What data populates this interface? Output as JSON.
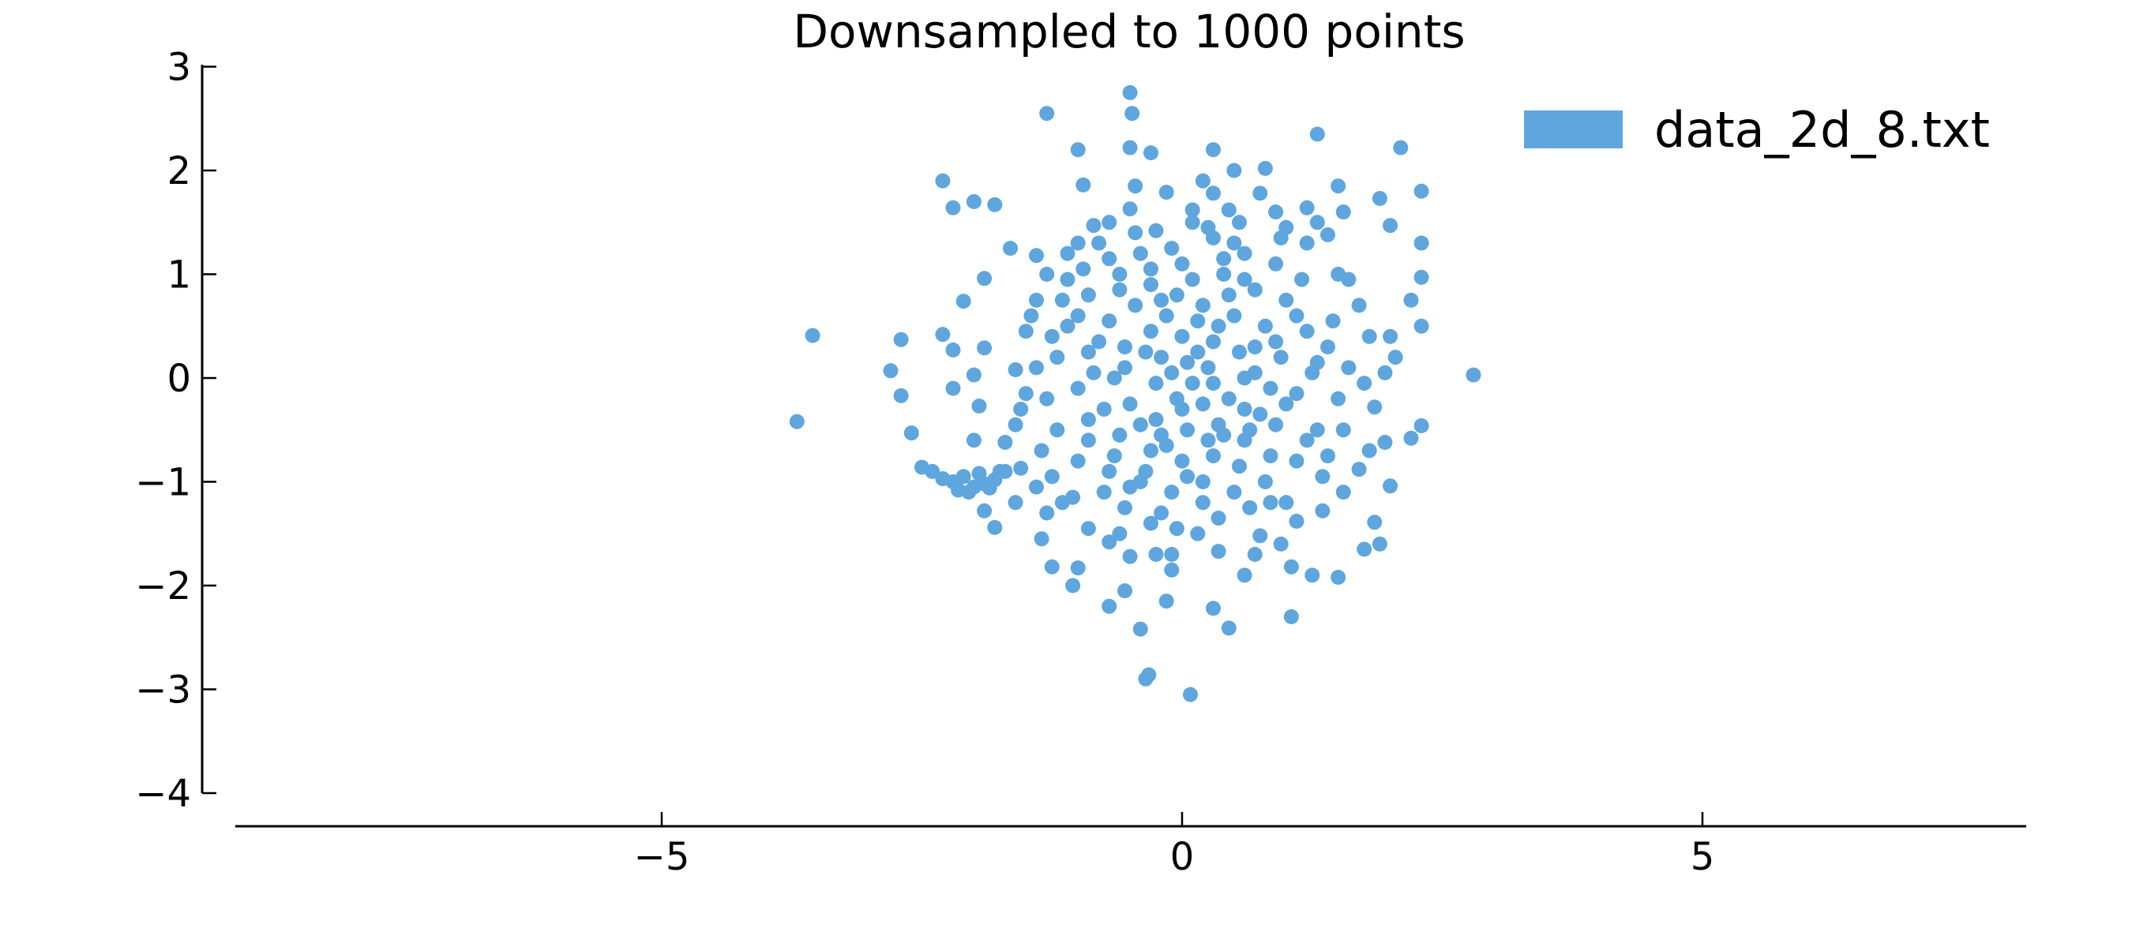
{
  "chart_data": {
    "type": "scatter",
    "title": "Downsampled to 1000 points",
    "xlabel": "",
    "ylabel": "",
    "xlim": [
      -9.1,
      8.1
    ],
    "ylim": [
      -4.3,
      3.0
    ],
    "x_ticks": [
      -5,
      0,
      5
    ],
    "x_tick_labels": [
      "−5",
      "0",
      "5"
    ],
    "y_ticks": [
      3,
      2,
      1,
      0,
      -1,
      -2,
      -3,
      -4
    ],
    "y_tick_labels": [
      "3",
      "2",
      "1",
      "0",
      "−1",
      "−2",
      "−3",
      "−4"
    ],
    "grid": false,
    "legend_position": "top-right",
    "series": [
      {
        "name": "data_2d_8.txt",
        "color": "#5fa6df",
        "points": [
          [
            -3.7,
            -0.42
          ],
          [
            -3.55,
            0.41
          ],
          [
            -2.8,
            0.07
          ],
          [
            -2.7,
            -0.17
          ],
          [
            -2.7,
            0.37
          ],
          [
            -2.6,
            -0.53
          ],
          [
            -2.3,
            1.9
          ],
          [
            -2.2,
            1.64
          ],
          [
            -2.0,
            1.7
          ],
          [
            -1.8,
            1.67
          ],
          [
            -1.3,
            2.55
          ],
          [
            -1.0,
            2.2
          ],
          [
            -0.5,
            2.75
          ],
          [
            -0.48,
            2.55
          ],
          [
            -0.5,
            2.22
          ],
          [
            -0.3,
            2.17
          ],
          [
            0.3,
            2.2
          ],
          [
            1.3,
            2.35
          ],
          [
            2.1,
            2.22
          ],
          [
            0.8,
            2.02
          ],
          [
            0.5,
            2.0
          ],
          [
            -2.3,
            0.42
          ],
          [
            -2.2,
            0.27
          ],
          [
            -2.1,
            0.74
          ],
          [
            -1.9,
            0.96
          ],
          [
            -1.9,
            0.29
          ],
          [
            -2.0,
            0.03
          ],
          [
            -2.2,
            -0.1
          ],
          [
            -1.95,
            -0.27
          ],
          [
            -2.5,
            -0.86
          ],
          [
            -2.4,
            -0.9
          ],
          [
            -2.3,
            -0.97
          ],
          [
            -2.2,
            -1.0
          ],
          [
            -2.1,
            -0.95
          ],
          [
            -2.0,
            -1.05
          ],
          [
            -1.9,
            -1.02
          ],
          [
            -1.8,
            -0.98
          ],
          [
            -2.15,
            -1.08
          ],
          [
            -2.05,
            -1.1
          ],
          [
            -1.95,
            -0.92
          ],
          [
            -1.85,
            -1.06
          ],
          [
            -1.75,
            -0.9
          ],
          [
            -1.9,
            -1.28
          ],
          [
            -1.8,
            -1.44
          ],
          [
            -1.6,
            -1.2
          ],
          [
            -1.35,
            -1.55
          ],
          [
            -1.25,
            -1.82
          ],
          [
            -1.0,
            -1.83
          ],
          [
            -1.05,
            -2.0
          ],
          [
            -0.7,
            -2.2
          ],
          [
            -0.55,
            -2.05
          ],
          [
            -0.4,
            -2.42
          ],
          [
            -0.35,
            -2.9
          ],
          [
            -0.32,
            -2.86
          ],
          [
            0.08,
            -3.05
          ],
          [
            0.3,
            -2.22
          ],
          [
            0.45,
            -2.41
          ],
          [
            -0.15,
            -2.15
          ],
          [
            1.05,
            -2.3
          ],
          [
            1.05,
            -1.82
          ],
          [
            1.5,
            -1.92
          ],
          [
            1.25,
            -1.9
          ],
          [
            1.75,
            -1.65
          ],
          [
            1.9,
            -1.6
          ],
          [
            1.85,
            -1.39
          ],
          [
            2.0,
            -1.04
          ],
          [
            2.2,
            -0.58
          ],
          [
            2.3,
            -0.46
          ],
          [
            2.8,
            0.03
          ],
          [
            2.3,
            0.5
          ],
          [
            2.3,
            0.97
          ],
          [
            2.3,
            1.3
          ],
          [
            2.3,
            1.8
          ],
          [
            2.0,
            1.47
          ],
          [
            1.9,
            1.73
          ],
          [
            1.5,
            1.85
          ],
          [
            1.55,
            1.6
          ],
          [
            1.4,
            1.38
          ],
          [
            1.2,
            1.64
          ],
          [
            1.0,
            1.45
          ],
          [
            0.75,
            1.78
          ],
          [
            0.55,
            1.5
          ],
          [
            0.45,
            1.62
          ],
          [
            0.3,
            1.78
          ],
          [
            0.1,
            1.62
          ],
          [
            -0.15,
            1.79
          ],
          [
            -0.45,
            1.85
          ],
          [
            -0.5,
            1.63
          ],
          [
            -0.95,
            1.86
          ],
          [
            -1.4,
            1.18
          ],
          [
            -1.65,
            1.25
          ],
          [
            -0.7,
            1.5
          ],
          [
            -0.85,
            1.47
          ],
          [
            -0.25,
            1.42
          ],
          [
            2.05,
            0.2
          ],
          [
            2.2,
            0.75
          ],
          [
            1.95,
            0.05
          ],
          [
            1.85,
            -0.28
          ],
          [
            1.95,
            -0.62
          ],
          [
            1.7,
            -0.88
          ],
          [
            1.55,
            -1.1
          ],
          [
            1.35,
            -1.28
          ],
          [
            1.1,
            -1.38
          ],
          [
            0.95,
            -1.6
          ],
          [
            0.75,
            -1.52
          ],
          [
            0.6,
            -1.9
          ],
          [
            0.35,
            -1.67
          ],
          [
            0.15,
            -1.5
          ],
          [
            -0.05,
            -1.45
          ],
          [
            -0.1,
            -1.85
          ],
          [
            -0.25,
            -1.7
          ],
          [
            -0.5,
            -1.72
          ],
          [
            -0.7,
            -1.58
          ],
          [
            -0.9,
            -1.45
          ],
          [
            -1.15,
            -1.2
          ],
          [
            -1.4,
            -1.05
          ],
          [
            -1.55,
            -0.87
          ],
          [
            -1.7,
            -0.62
          ],
          [
            -1.55,
            -0.3
          ],
          [
            -1.6,
            0.08
          ],
          [
            -1.5,
            0.45
          ],
          [
            -1.4,
            0.75
          ],
          [
            -1.3,
            1.0
          ],
          [
            -1.0,
            1.3
          ],
          [
            -0.7,
            1.15
          ],
          [
            -0.4,
            1.2
          ],
          [
            0.0,
            1.1
          ],
          [
            0.3,
            1.35
          ],
          [
            0.6,
            1.2
          ],
          [
            0.9,
            1.1
          ],
          [
            1.2,
            1.3
          ],
          [
            1.5,
            1.0
          ],
          [
            1.7,
            0.7
          ],
          [
            1.8,
            0.4
          ],
          [
            1.6,
            0.1
          ],
          [
            1.5,
            -0.2
          ],
          [
            1.3,
            -0.5
          ],
          [
            1.1,
            -0.8
          ],
          [
            0.8,
            -1.0
          ],
          [
            0.5,
            -1.1
          ],
          [
            0.2,
            -1.2
          ],
          [
            -0.1,
            -1.1
          ],
          [
            -0.4,
            -1.0
          ],
          [
            -0.7,
            -0.9
          ],
          [
            -1.0,
            -0.8
          ],
          [
            -1.2,
            -0.5
          ],
          [
            -1.3,
            -0.2
          ],
          [
            -1.2,
            0.2
          ],
          [
            -1.1,
            0.5
          ],
          [
            -0.9,
            0.8
          ],
          [
            -0.6,
            1.0
          ],
          [
            -0.3,
            0.9
          ],
          [
            0.1,
            0.95
          ],
          [
            0.4,
            1.0
          ],
          [
            0.7,
            0.85
          ],
          [
            1.0,
            0.75
          ],
          [
            1.2,
            0.45
          ],
          [
            1.3,
            0.15
          ],
          [
            1.1,
            -0.15
          ],
          [
            0.9,
            -0.45
          ],
          [
            0.6,
            -0.6
          ],
          [
            0.3,
            -0.75
          ],
          [
            0.0,
            -0.8
          ],
          [
            -0.3,
            -0.7
          ],
          [
            -0.6,
            -0.55
          ],
          [
            -0.9,
            -0.4
          ],
          [
            -1.0,
            -0.1
          ],
          [
            -0.9,
            0.25
          ],
          [
            -0.7,
            0.55
          ],
          [
            -0.45,
            0.7
          ],
          [
            -0.15,
            0.6
          ],
          [
            0.2,
            0.7
          ],
          [
            0.5,
            0.6
          ],
          [
            0.8,
            0.5
          ],
          [
            0.95,
            0.2
          ],
          [
            0.85,
            -0.1
          ],
          [
            0.6,
            -0.3
          ],
          [
            0.35,
            -0.45
          ],
          [
            0.05,
            -0.5
          ],
          [
            -0.25,
            -0.4
          ],
          [
            -0.5,
            -0.25
          ],
          [
            -0.65,
            0.0
          ],
          [
            -0.55,
            0.3
          ],
          [
            -0.3,
            0.45
          ],
          [
            0.0,
            0.4
          ],
          [
            0.3,
            0.35
          ],
          [
            0.55,
            0.25
          ],
          [
            0.6,
            0.0
          ],
          [
            0.45,
            -0.2
          ],
          [
            0.2,
            -0.25
          ],
          [
            -0.05,
            -0.2
          ],
          [
            -0.25,
            -0.05
          ],
          [
            -0.2,
            0.2
          ],
          [
            0.05,
            0.15
          ],
          [
            0.25,
            0.1
          ],
          [
            0.3,
            -0.05
          ],
          [
            0.1,
            -0.05
          ],
          [
            -0.1,
            0.05
          ],
          [
            0.15,
            0.25
          ],
          [
            -0.35,
            0.25
          ],
          [
            -0.4,
            -0.45
          ],
          [
            0.4,
            -0.55
          ],
          [
            0.7,
            0.3
          ],
          [
            -0.8,
            0.35
          ],
          [
            -0.75,
            -0.3
          ],
          [
            0.75,
            -0.35
          ],
          [
            -1.1,
            0.95
          ],
          [
            1.15,
            0.95
          ],
          [
            1.4,
            -0.75
          ],
          [
            -1.35,
            -0.7
          ],
          [
            -1.25,
            0.4
          ],
          [
            1.45,
            0.55
          ],
          [
            -0.55,
            -1.25
          ],
          [
            0.65,
            -1.25
          ],
          [
            -0.2,
            -1.3
          ],
          [
            0.35,
            -1.35
          ],
          [
            -1.6,
            -0.45
          ],
          [
            1.75,
            -0.05
          ],
          [
            -0.45,
            1.4
          ],
          [
            0.25,
            1.45
          ],
          [
            -0.35,
            -0.9
          ],
          [
            0.45,
            0.8
          ],
          [
            -0.6,
            0.85
          ],
          [
            0.85,
            -0.75
          ],
          [
            1.25,
            0.05
          ],
          [
            -1.4,
            0.1
          ],
          [
            0.05,
            -0.95
          ],
          [
            -0.1,
            1.25
          ],
          [
            1.6,
            0.95
          ],
          [
            -1.5,
            -0.15
          ],
          [
            0.95,
            1.35
          ],
          [
            -1.05,
            -1.15
          ],
          [
            0.15,
            0.55
          ],
          [
            -0.15,
            -0.65
          ],
          [
            0.55,
            -0.85
          ],
          [
            -0.85,
            0.05
          ],
          [
            0.7,
            0.05
          ],
          [
            1.0,
            -0.25
          ],
          [
            -0.2,
            0.75
          ],
          [
            -0.65,
            -0.75
          ],
          [
            0.85,
            -1.2
          ],
          [
            -0.95,
            1.05
          ],
          [
            0.2,
            -1.0
          ],
          [
            1.35,
            -0.95
          ],
          [
            -1.25,
            -0.95
          ],
          [
            0.4,
            1.15
          ],
          [
            -0.5,
            -1.05
          ],
          [
            1.1,
            0.6
          ],
          [
            -1.15,
            0.75
          ],
          [
            0.6,
            0.95
          ],
          [
            -0.75,
            -1.1
          ],
          [
            0.25,
            -0.6
          ],
          [
            -0.3,
            1.05
          ],
          [
            1.55,
            -0.5
          ],
          [
            -1.45,
            0.6
          ],
          [
            0.9,
            0.35
          ],
          [
            -0.55,
            0.1
          ],
          [
            0.0,
            -0.3
          ],
          [
            0.35,
            0.5
          ],
          [
            -0.2,
            -0.55
          ],
          [
            0.65,
            -0.5
          ],
          [
            -0.9,
            -0.6
          ],
          [
            1.2,
            -0.6
          ],
          [
            -0.05,
            0.8
          ],
          [
            0.5,
            1.3
          ],
          [
            -1.0,
            0.6
          ],
          [
            1.4,
            0.3
          ],
          [
            -0.3,
            -1.4
          ],
          [
            0.1,
            1.5
          ],
          [
            -1.7,
            -0.9
          ],
          [
            1.8,
            -0.7
          ],
          [
            -0.8,
            1.3
          ],
          [
            0.9,
            1.6
          ],
          [
            -0.6,
            -1.5
          ],
          [
            0.7,
            -1.7
          ],
          [
            1.3,
            1.5
          ],
          [
            -1.3,
            -1.3
          ],
          [
            2.0,
            0.4
          ],
          [
            -2.0,
            -0.6
          ],
          [
            0.2,
            1.9
          ],
          [
            -0.1,
            -1.7
          ],
          [
            1.0,
            -1.2
          ],
          [
            -1.1,
            1.2
          ]
        ]
      }
    ]
  }
}
